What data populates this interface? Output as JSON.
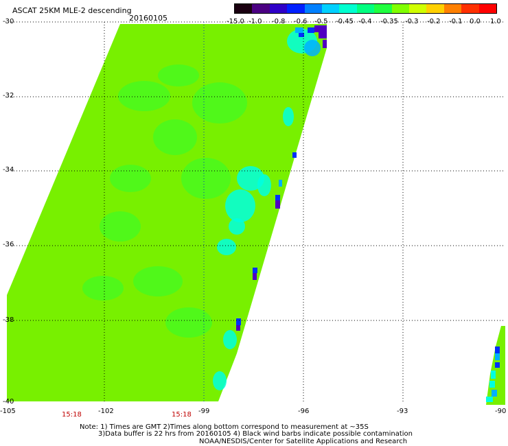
{
  "header": {
    "title": "ASCAT 25KM MLE-2 descending",
    "date": "20160105"
  },
  "colorbar": {
    "labels": [
      "-15.0",
      "-1.0",
      "-0.8",
      "-0.6",
      "-0.5",
      "-0.45",
      "-0.4",
      "-0.35",
      "-0.3",
      "-0.2",
      "-0.1",
      "0.0",
      "1.0"
    ],
    "colors": [
      "#1a0010",
      "#4b0082",
      "#2f00c8",
      "#0020ff",
      "#0080ff",
      "#00d0ff",
      "#00ffd0",
      "#00ff80",
      "#20ff40",
      "#80ff00",
      "#d0ff00",
      "#ffd000",
      "#ff8000",
      "#ff3000",
      "#ff0000"
    ]
  },
  "axes": {
    "lat_labels": [
      "-30",
      "-32",
      "-34",
      "-36",
      "-38",
      "-40"
    ],
    "lon_labels": [
      "-105",
      "-102",
      "-99",
      "-96",
      "-93",
      "-90"
    ]
  },
  "times": [
    "15:18",
    "15:18"
  ],
  "notes": {
    "line1": "Note: 1) Times are GMT 2)Times along bottom correspond to measurement at ~35S",
    "line2": "3)Data buffer is 22 hrs from 20160105 4) Black wind barbs indicate possible contamination",
    "line3": "NOAA/NESDIS/Center for Satellite Applications and Research"
  },
  "palette": {
    "base": "#78f000",
    "green": "#30ff30",
    "cyan": "#00ffe0",
    "sky": "#00b0ff",
    "blue": "#0030ff",
    "purple": "#5000c0"
  }
}
